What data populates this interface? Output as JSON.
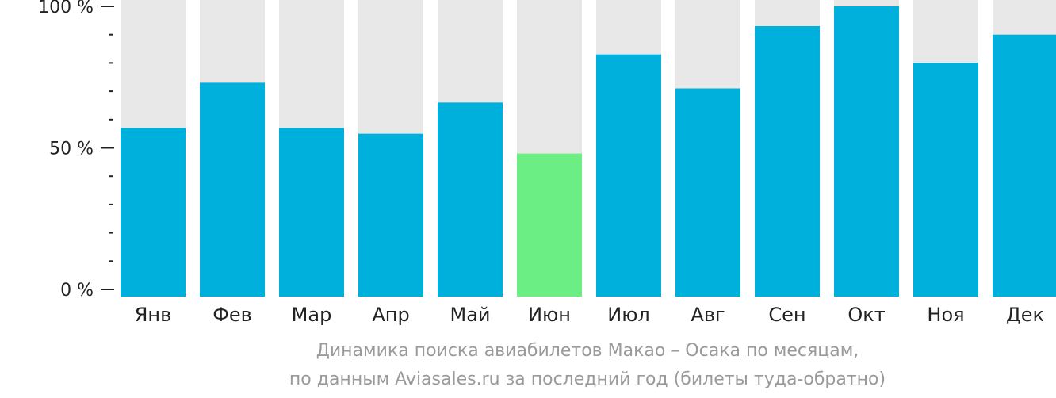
{
  "chart_data": {
    "type": "bar",
    "categories": [
      "Янв",
      "Фев",
      "Мар",
      "Апр",
      "Май",
      "Июн",
      "Июл",
      "Авг",
      "Сен",
      "Окт",
      "Ноя",
      "Дек"
    ],
    "values": [
      57,
      73,
      57,
      55,
      66,
      48,
      83,
      71,
      93,
      100,
      80,
      90
    ],
    "highlight_index": 5,
    "ylim": [
      0,
      100
    ],
    "yticks": [
      {
        "value": 0,
        "label": "0 %"
      },
      {
        "value": 50,
        "label": "50 %"
      },
      {
        "value": 100,
        "label": "100 %"
      }
    ],
    "minor_ticks": [
      10,
      20,
      30,
      40,
      60,
      70,
      80,
      90
    ],
    "colors": {
      "bar": "#00b0dc",
      "highlight": "#6bef84",
      "background_bar": "#e8e8e8",
      "axis": "#222222"
    },
    "grid": false,
    "legend": "none"
  },
  "caption": {
    "line1": "Динамика поиска авиабилетов Макао – Осака по месяцам,",
    "line2": "по данным Aviasales.ru за последний год (билеты туда-обратно)"
  }
}
